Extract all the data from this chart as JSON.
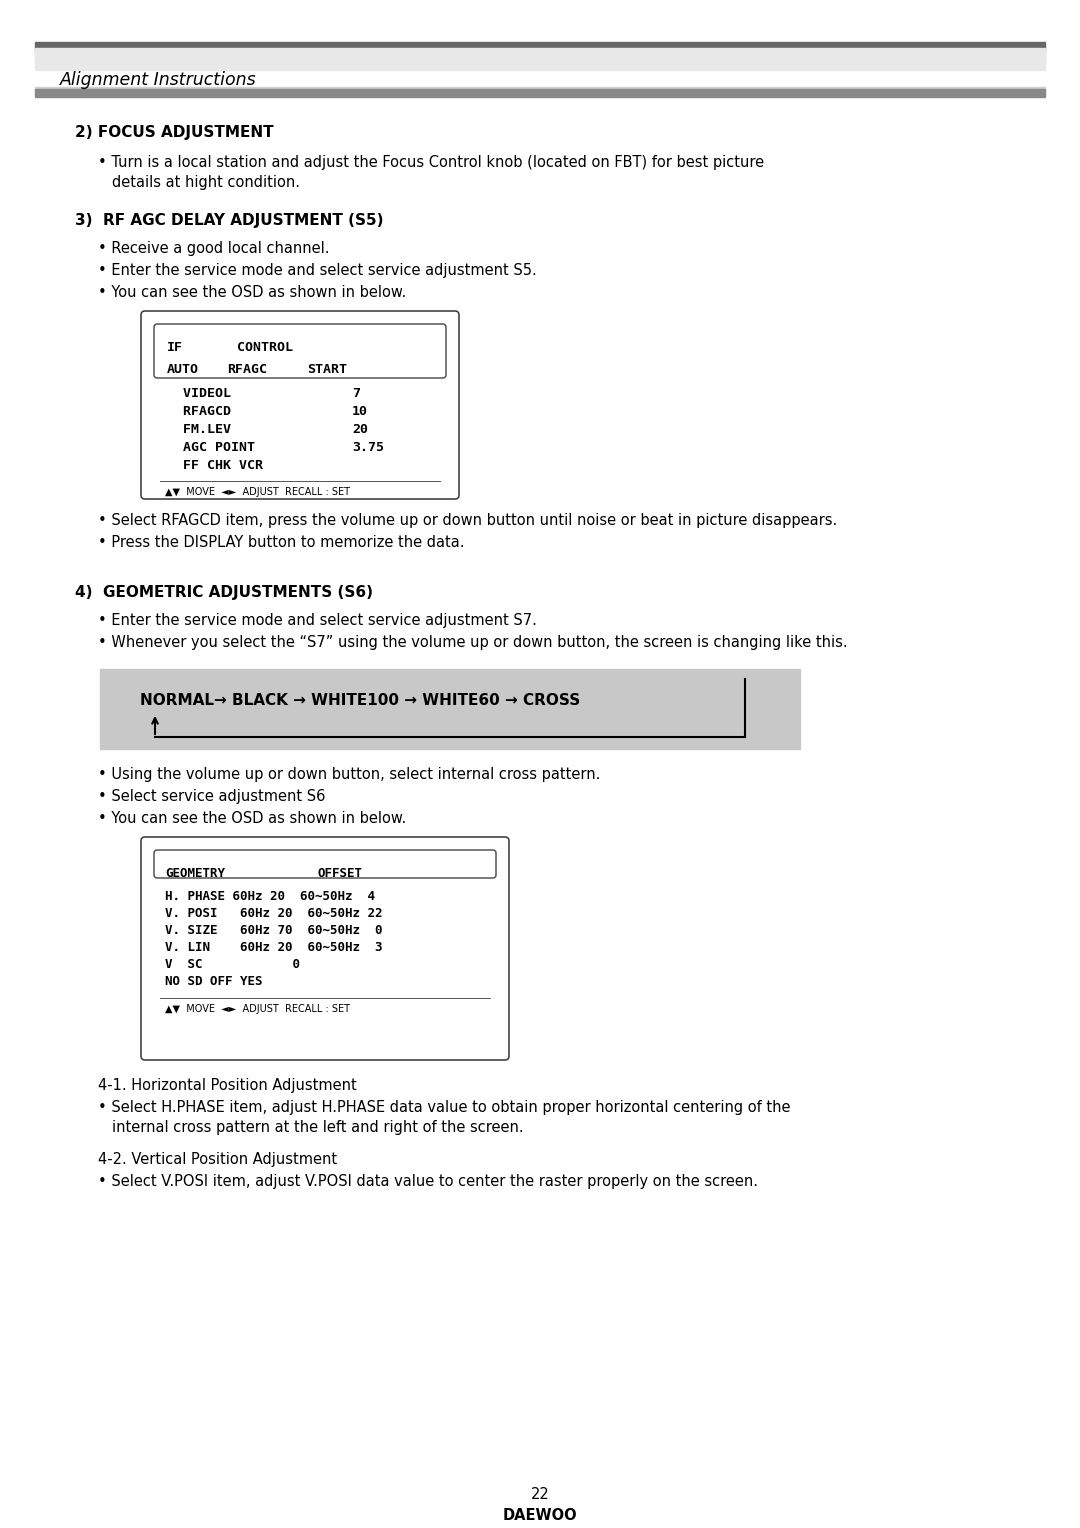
{
  "title": "Alignment Instructions",
  "bg_color": "#ffffff",
  "section2_heading": "2) FOCUS ADJUSTMENT",
  "section3_heading": "3)  RF AGC DELAY ADJUSTMENT (S5)",
  "section4_heading": "4)  GEOMETRIC ADJUSTMENTS (S6)",
  "section41_heading": "4-1. Horizontal Position Adjustment",
  "section42_heading": "4-2. Vertical Position Adjustment",
  "footer_page": "22",
  "footer_brand": "DAEWOO",
  "header_stripe1_color": "#888888",
  "header_stripe2_color": "#c0c0c0",
  "header_stripe3_color": "#888888",
  "flowchart_bg": "#c8c8c8"
}
